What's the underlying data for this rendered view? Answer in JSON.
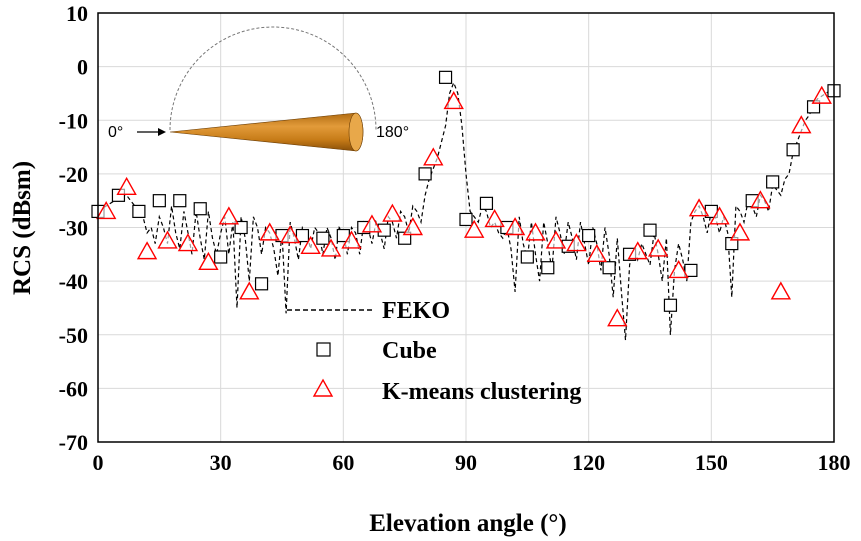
{
  "chart_data": {
    "type": "scatter",
    "xlabel": "Elevation angle (°)",
    "ylabel": "RCS (dBsm)",
    "xlim": [
      0,
      180
    ],
    "ylim": [
      -70,
      10
    ],
    "xticks": [
      0,
      30,
      60,
      90,
      120,
      150,
      180
    ],
    "yticks": [
      10,
      0,
      -10,
      -20,
      -30,
      -40,
      -50,
      -60,
      -70
    ],
    "grid": true,
    "legend_position": "lower-center",
    "legend": {
      "feko": "FEKO",
      "cube": "Cube",
      "kmeans": "K-means clustering"
    },
    "inset": {
      "label_start": "0°",
      "label_end": "180°"
    },
    "colors": {
      "feko": "#000000",
      "cube": "#000000",
      "kmeans": "#ff0000",
      "cone": "#d98a1c"
    },
    "series": [
      {
        "name": "FEKO",
        "style": "dashed-line",
        "x": [
          0,
          1,
          2,
          3,
          4,
          5,
          6,
          7,
          8,
          9,
          10,
          11,
          12,
          13,
          14,
          15,
          16,
          17,
          18,
          19,
          20,
          21,
          22,
          23,
          24,
          25,
          26,
          27,
          28,
          29,
          30,
          31,
          32,
          33,
          34,
          35,
          36,
          37,
          38,
          39,
          40,
          41,
          42,
          43,
          44,
          45,
          46,
          47,
          48,
          49,
          50,
          51,
          52,
          53,
          54,
          55,
          56,
          57,
          58,
          59,
          60,
          61,
          62,
          63,
          64,
          65,
          66,
          67,
          68,
          69,
          70,
          71,
          72,
          73,
          74,
          75,
          76,
          77,
          78,
          79,
          80,
          81,
          82,
          83,
          84,
          85,
          86,
          87,
          88,
          89,
          90,
          91,
          92,
          93,
          94,
          95,
          96,
          97,
          98,
          99,
          100,
          101,
          102,
          103,
          104,
          105,
          106,
          107,
          108,
          109,
          110,
          111,
          112,
          113,
          114,
          115,
          116,
          117,
          118,
          119,
          120,
          121,
          122,
          123,
          124,
          125,
          126,
          127,
          128,
          129,
          130,
          131,
          132,
          133,
          134,
          135,
          136,
          137,
          138,
          139,
          140,
          141,
          142,
          143,
          144,
          145,
          146,
          147,
          148,
          149,
          150,
          151,
          152,
          153,
          154,
          155,
          156,
          157,
          158,
          159,
          160,
          161,
          162,
          163,
          164,
          165,
          166,
          167,
          168,
          169,
          170,
          171,
          172,
          173,
          174,
          175,
          176,
          177,
          178,
          179,
          180
        ],
        "y": [
          -27,
          -26.5,
          -26,
          -25.5,
          -25,
          -24.5,
          -24,
          -24,
          -25,
          -26,
          -27,
          -28,
          -31,
          -30,
          -33,
          -28,
          -30,
          -33,
          -26,
          -31,
          -34,
          -27,
          -31,
          -35,
          -27,
          -32,
          -36,
          -27,
          -32,
          -35,
          -31,
          -28,
          -35,
          -29,
          -45,
          -28,
          -32,
          -40,
          -28,
          -30,
          -35,
          -30,
          -31,
          -34,
          -39,
          -31,
          -46,
          -29,
          -32,
          -36,
          -30,
          -31,
          -34,
          -30,
          -31,
          -35,
          -30,
          -32,
          -36,
          -30,
          -31,
          -35,
          -30,
          -31,
          -35,
          -29,
          -30,
          -33,
          -29,
          -31,
          -34,
          -28,
          -29,
          -32,
          -27,
          -28,
          -31,
          -26,
          -27,
          -29,
          -24,
          -21,
          -19,
          -17,
          -14,
          -11,
          -5,
          -3,
          -5,
          -11,
          -20,
          -27,
          -28,
          -29,
          -26,
          -27,
          -30,
          -29,
          -31,
          -32,
          -30,
          -34,
          -42,
          -28,
          -33,
          -36,
          -29,
          -35,
          -40,
          -29,
          -33,
          -38,
          -28,
          -31,
          -35,
          -29,
          -32,
          -36,
          -29,
          -33,
          -37,
          -30,
          -33,
          -38,
          -30,
          -35,
          -43,
          -32,
          -42,
          -51,
          -37,
          -34,
          -36,
          -33,
          -35,
          -37,
          -31,
          -35,
          -40,
          -32,
          -50,
          -38,
          -33,
          -36,
          -40,
          -29,
          -27,
          -26,
          -28,
          -31,
          -27,
          -28,
          -31,
          -28,
          -31,
          -43,
          -26,
          -27,
          -29,
          -25,
          -26,
          -28,
          -24,
          -25,
          -27,
          -22,
          -23,
          -24,
          -21,
          -20,
          -16,
          -14,
          -12,
          -10,
          -9,
          -7,
          -6,
          -5.5,
          -5,
          -4.5,
          -4
        ]
      },
      {
        "name": "Cube",
        "marker": "square",
        "x": [
          0,
          5,
          10,
          15,
          20,
          25,
          30,
          35,
          40,
          45,
          50,
          55,
          60,
          65,
          70,
          75,
          80,
          85,
          90,
          95,
          100,
          105,
          110,
          115,
          120,
          125,
          130,
          135,
          140,
          145,
          150,
          155,
          160,
          165,
          170,
          175,
          180
        ],
        "y": [
          -27,
          -24,
          -27,
          -25,
          -25,
          -26.5,
          -35.5,
          -30,
          -40.5,
          -31.5,
          -31.5,
          -32,
          -31.5,
          -30,
          -30.5,
          -32,
          -20,
          -2,
          -28.5,
          -25.5,
          -30,
          -35.5,
          -37.5,
          -33.5,
          -31.5,
          -37.5,
          -35,
          -30.5,
          -44.5,
          -38,
          -27,
          -33,
          -25,
          -21.5,
          -15.5,
          -7.5,
          -4.5
        ]
      },
      {
        "name": "K-means clustering",
        "marker": "triangle",
        "x": [
          2,
          7,
          12,
          17,
          22,
          27,
          32,
          37,
          42,
          47,
          52,
          57,
          62,
          67,
          72,
          77,
          82,
          87,
          92,
          97,
          102,
          107,
          112,
          117,
          122,
          127,
          132,
          137,
          142,
          147,
          152,
          157,
          162,
          167,
          172,
          177
        ],
        "y": [
          -27,
          -22.5,
          -34.5,
          -32.5,
          -33,
          -36.5,
          -28,
          -42,
          -31,
          -31.5,
          -33.5,
          -34,
          -32.5,
          -29.5,
          -27.5,
          -30,
          -17,
          -6.5,
          -30.5,
          -28.5,
          -30,
          -31,
          -32.5,
          -33,
          -35,
          -47,
          -34.5,
          -34,
          -38,
          -26.5,
          -28,
          -31,
          -25,
          -42,
          -11,
          -5.5
        ]
      }
    ]
  }
}
